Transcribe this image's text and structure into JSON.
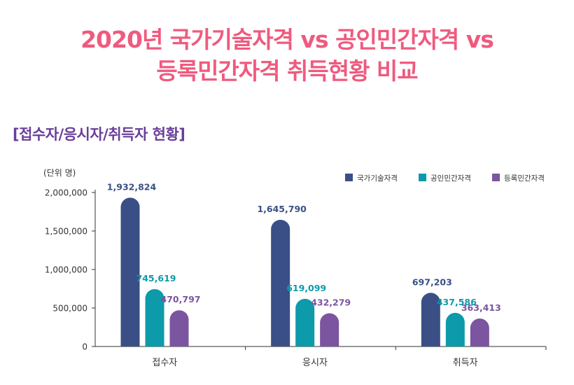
{
  "title_lines": [
    "2020년 국가기술자격 vs 공인민간자격 vs",
    "등록민간자격 취득현황 비교"
  ],
  "subtitle": "[접수자/응시자/취득자 현황]",
  "chart_data": {
    "type": "bar",
    "unit_label": "(단위 명)",
    "categories": [
      "접수자",
      "응시자",
      "취득자"
    ],
    "series": [
      {
        "name": "국가기술자격",
        "color": "#3a4f86",
        "values": [
          1932824,
          1645790,
          697203
        ],
        "labels": [
          "1,932,824",
          "1,645,790",
          "697,203"
        ]
      },
      {
        "name": "공인민간자격",
        "color": "#0d9aaa",
        "values": [
          745619,
          619099,
          437586
        ],
        "labels": [
          "745,619",
          "619,099",
          "437,586"
        ]
      },
      {
        "name": "등록민간자격",
        "color": "#7b55a0",
        "values": [
          470797,
          432279,
          363413
        ],
        "labels": [
          "470,797",
          "432,279",
          "363,413"
        ]
      }
    ],
    "yticks": [
      0,
      500000,
      1000000,
      1500000,
      2000000
    ],
    "ytick_labels": [
      "0",
      "500,000",
      "1,000,000",
      "1,500,000",
      "2,000,000"
    ],
    "ylim": [
      0,
      2000000
    ],
    "legend_position": "top-right",
    "grid": false
  }
}
